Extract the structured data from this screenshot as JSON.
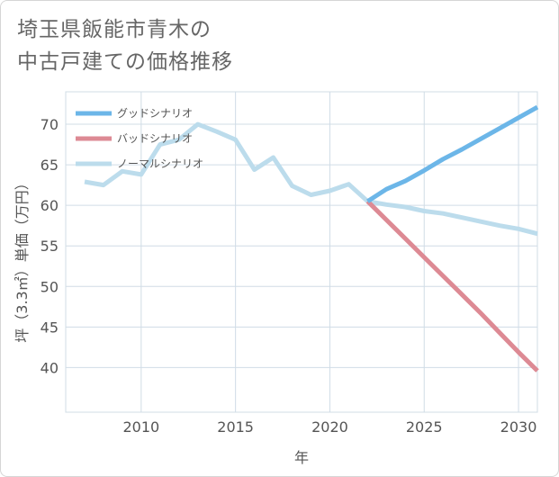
{
  "title": {
    "line1": "埼玉県飯能市青木の",
    "line2": "中古戸建ての価格推移"
  },
  "chart_data": {
    "type": "line",
    "title": "埼玉県飯能市青木の中古戸建ての価格推移",
    "xlabel": "年",
    "ylabel": "坪（3.3㎡）単価（万円）",
    "xlim": [
      2006,
      2031
    ],
    "ylim": [
      34.5,
      74
    ],
    "xticks": [
      2010,
      2015,
      2020,
      2025,
      2030
    ],
    "yticks": [
      40,
      45,
      50,
      55,
      60,
      65,
      70
    ],
    "grid": true,
    "legend_position": "top-left",
    "series": [
      {
        "name": "グッドシナリオ",
        "color": "#6cb6e8",
        "x": [
          2022,
          2023,
          2024,
          2025,
          2026,
          2027,
          2028,
          2029,
          2030,
          2031
        ],
        "values": [
          60.5,
          62.0,
          63.0,
          64.3,
          65.7,
          66.9,
          68.2,
          69.5,
          70.8,
          72.1
        ]
      },
      {
        "name": "バッドシナリオ",
        "color": "#dd8a94",
        "x": [
          2022,
          2023,
          2024,
          2025,
          2026,
          2027,
          2028,
          2029,
          2030,
          2031
        ],
        "values": [
          60.5,
          58.2,
          55.9,
          53.6,
          51.3,
          49.0,
          46.7,
          44.3,
          41.9,
          39.6
        ]
      },
      {
        "name": "ノーマルシナリオ",
        "color": "#bcdcec",
        "x": [
          2007,
          2008,
          2009,
          2010,
          2011,
          2012,
          2013,
          2014,
          2015,
          2016,
          2017,
          2018,
          2019,
          2020,
          2021,
          2022,
          2023,
          2024,
          2025,
          2026,
          2027,
          2028,
          2029,
          2030,
          2031
        ],
        "values": [
          62.9,
          62.5,
          64.2,
          63.8,
          67.5,
          68.1,
          70.0,
          69.1,
          68.1,
          64.4,
          65.9,
          62.4,
          61.3,
          61.8,
          62.6,
          60.5,
          60.1,
          59.8,
          59.3,
          59.0,
          58.5,
          58.0,
          57.5,
          57.1,
          56.5
        ]
      }
    ]
  }
}
